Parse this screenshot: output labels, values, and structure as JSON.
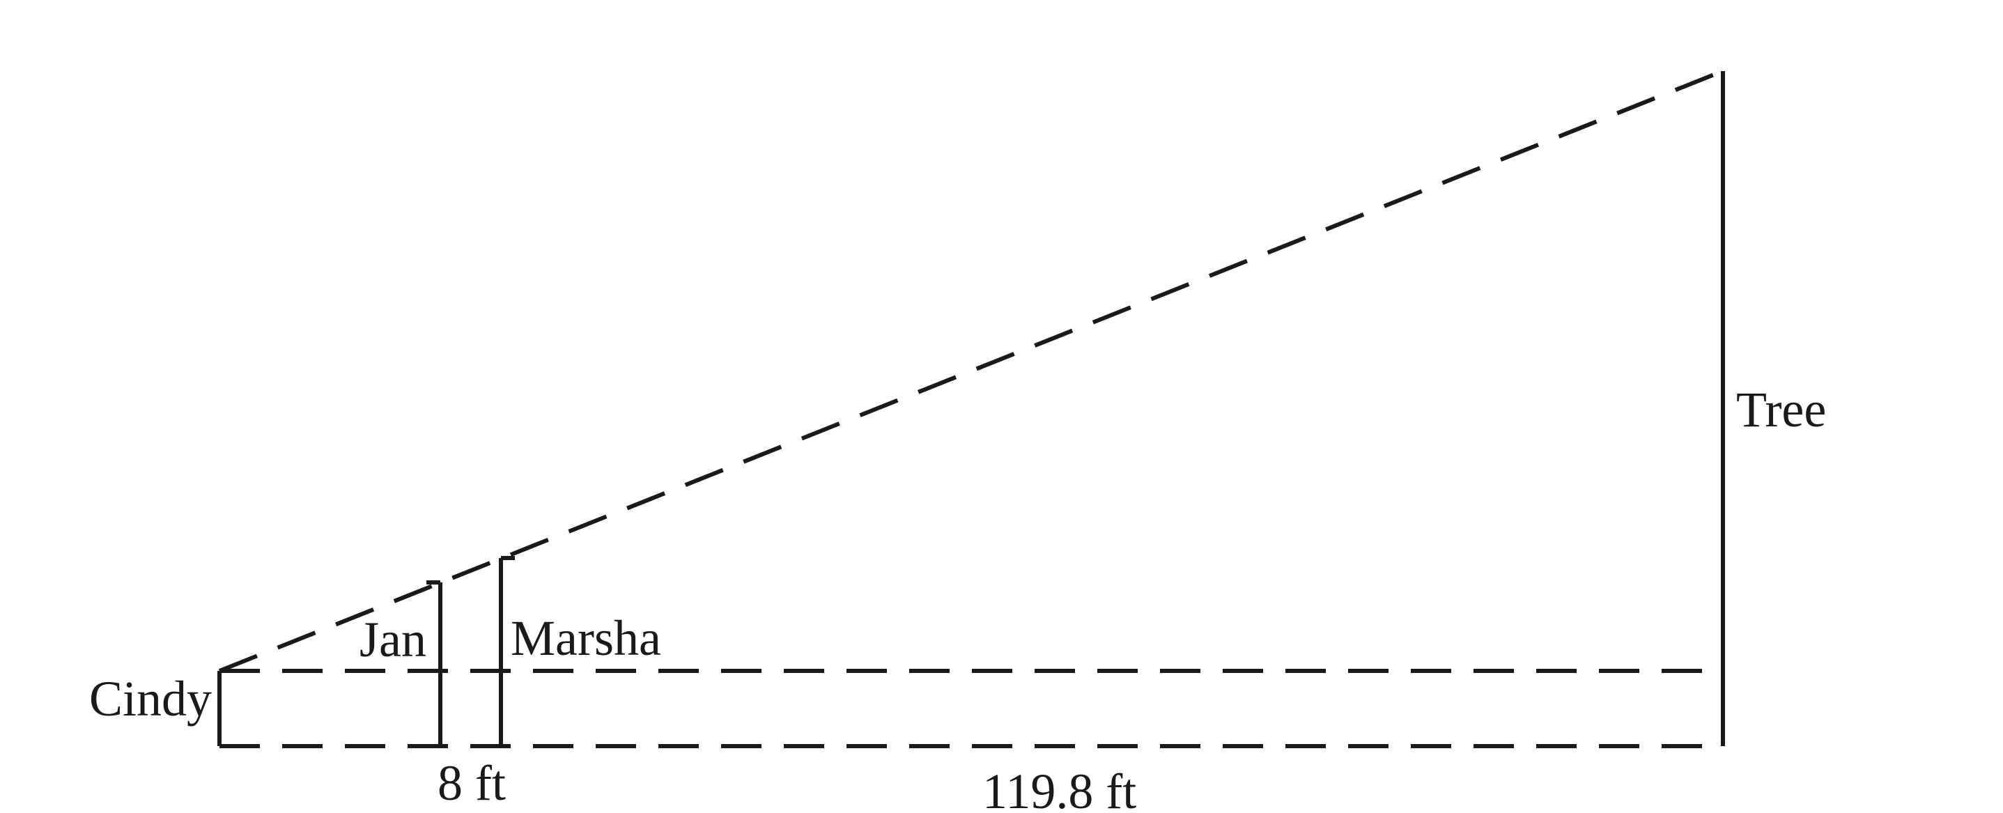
{
  "labels": {
    "cindy": "Cindy",
    "jan": "Jan",
    "marsha": "Marsha",
    "tree": "Tree",
    "distance_short": "8 ft",
    "distance_long": "119.8 ft"
  }
}
